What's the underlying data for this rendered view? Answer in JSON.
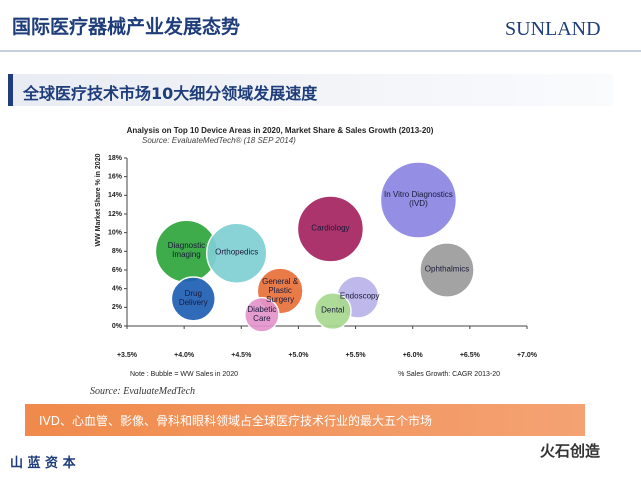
{
  "header": {
    "title": "国际医疗器械产业发展态势",
    "logo": "SUNLAND",
    "banner": "全球医疗技术市场10大细分领域发展速度"
  },
  "chart_data": {
    "type": "bubble",
    "title": "Analysis on Top 10 Device Areas in 2020, Market Share & Sales Growth (2013-20)",
    "subtitle": "Source: EvaluateMedTech® (18 SEP 2014)",
    "x_label": "% Sales Growth: CAGR 2013-20",
    "y_label": "WW Market Share % in 2020",
    "note": "Note : Bubble = WW Sales in 2020",
    "categories": [
      "In Vitro Diagnostics (IVD)",
      "Cardiology",
      "Diagnostic Imaging",
      "Orthopedics",
      "Ophthalmics",
      "General & Plastic Surgery",
      "Endoscopy",
      "Drug Delivery",
      "Dental",
      "Diabetic Care"
    ],
    "x": [
      6.05,
      5.28,
      4.02,
      4.46,
      6.3,
      4.84,
      5.52,
      4.08,
      5.3,
      4.68
    ],
    "values": [
      13.5,
      10.4,
      8.0,
      7.8,
      6.0,
      3.75,
      3.1,
      2.9,
      1.6,
      1.2
    ],
    "sizes": [
      69,
      52,
      46,
      43,
      35,
      25,
      21,
      23,
      16,
      14
    ],
    "colors": [
      "#8c86e2",
      "#a3235f",
      "#2ea63c",
      "#7fcfd2",
      "#9c9c9c",
      "#e8703a",
      "#b9b3ea",
      "#1f5fb5",
      "#a9d991",
      "#e394cb"
    ],
    "xlim": [
      3.5,
      7.0
    ],
    "xticks": [
      {
        "value": 3.5,
        "label": "+3.5%"
      },
      {
        "value": 4.0,
        "label": "+4.0%"
      },
      {
        "value": 4.5,
        "label": "+4.5%"
      },
      {
        "value": 5.0,
        "label": "+5.0%"
      },
      {
        "value": 5.5,
        "label": "+5.5%"
      },
      {
        "value": 6.0,
        "label": "+6.0%"
      },
      {
        "value": 6.5,
        "label": "+6.5%"
      },
      {
        "value": 7.0,
        "label": "+7.0%"
      }
    ],
    "ylim": [
      0,
      18
    ],
    "yticks": [
      {
        "value": 0,
        "label": "0%"
      },
      {
        "value": 2,
        "label": "2%"
      },
      {
        "value": 4,
        "label": "4%"
      },
      {
        "value": 6,
        "label": "6%"
      },
      {
        "value": 8,
        "label": "8%"
      },
      {
        "value": 10,
        "label": "10%"
      },
      {
        "value": 12,
        "label": "12%"
      },
      {
        "value": 14,
        "label": "14%"
      },
      {
        "value": 16,
        "label": "16%"
      },
      {
        "value": 18,
        "label": "18%"
      }
    ],
    "grid": false
  },
  "source": "Source: EvaluateMedTech",
  "highlight": "IVD、心血管、影像、骨科和眼科领域占全球医疗技术行业的最大五个市场",
  "footer": {
    "company": "山 蓝 资 本",
    "watermark": "火石创造"
  }
}
